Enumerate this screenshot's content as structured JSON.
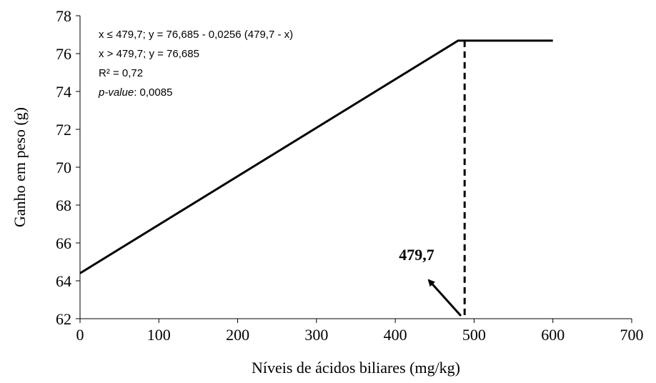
{
  "chart_data": {
    "type": "line",
    "x_label": "Níveis de ácidos biliares (mg/kg)",
    "y_label": "Ganho em peso (g)",
    "x": [
      0,
      479.7,
      600
    ],
    "series": [
      {
        "color": "#000000",
        "values": [
          64.4,
          76.685,
          76.685
        ]
      }
    ],
    "xlim": [
      0,
      700
    ],
    "xticks": [
      0,
      100,
      200,
      300,
      400,
      500,
      600,
      700
    ],
    "ylim": [
      62,
      78
    ],
    "yticks": [
      62,
      64,
      66,
      68,
      70,
      72,
      74,
      76,
      78
    ],
    "grid": false,
    "reference_line": {
      "x": 488,
      "y_top": 76.685
    },
    "breakpoint_label": "479,7",
    "equation_lines": [
      "x ≤ 479,7;  y = 76,685 - 0,0256 (479,7 - x)",
      "x > 479,7; y = 76,685",
      "R² = 0,72"
    ],
    "p_value_label": "p-value",
    "p_value_text": ": 0,0085"
  }
}
